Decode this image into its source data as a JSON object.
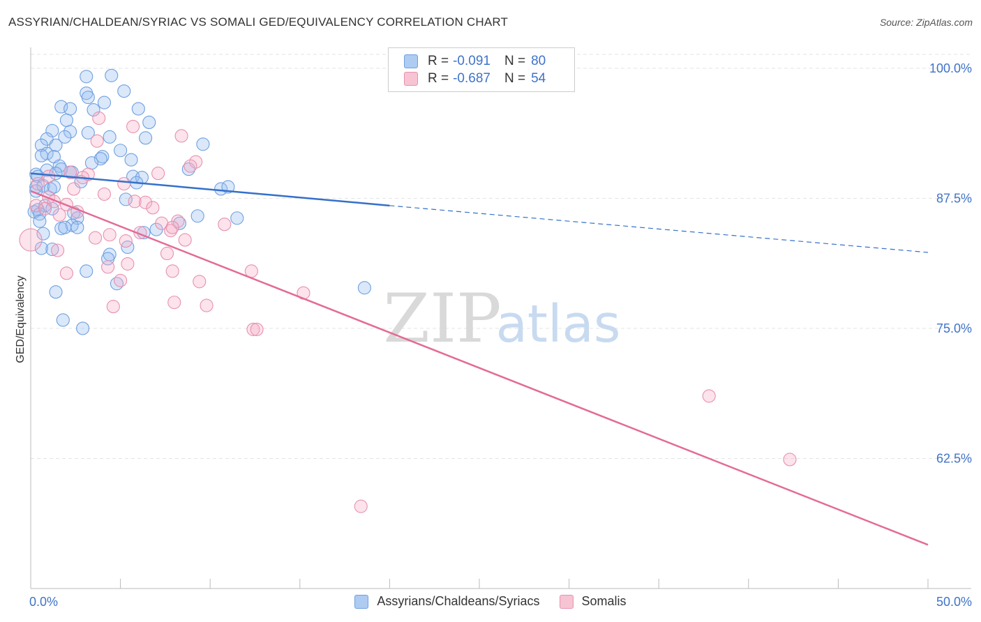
{
  "title": "ASSYRIAN/CHALDEAN/SYRIAC VS SOMALI GED/EQUIVALENCY CORRELATION CHART",
  "source": "Source: ZipAtlas.com",
  "watermark": {
    "zip": "ZIP",
    "atlas": "atlas"
  },
  "legend": {
    "rows": [
      {
        "r_label": "R =",
        "r_value": "-0.091",
        "n_label": "N =",
        "n_value": "80",
        "color": "#aecbf2",
        "border": "#6f9fe0"
      },
      {
        "r_label": "R =",
        "r_value": "-0.687",
        "n_label": "N =",
        "n_value": "54",
        "color": "#f7c4d4",
        "border": "#e890ad"
      }
    ]
  },
  "bottom_legend": [
    "Assyrians/Chaldeans/Syriacs",
    "Somalis"
  ],
  "x_ticks": {
    "left": "0.0%",
    "right": "50.0%"
  },
  "y_tick_labels": [
    "100.0%",
    "87.5%",
    "75.0%",
    "62.5%"
  ],
  "colors": {
    "blue": "#3470c9",
    "pink": "#e36b96",
    "blue_fill": "rgba(150,190,240,0.35)",
    "pink_fill": "rgba(245,175,200,0.35)",
    "tick_text": "#3f73c8"
  },
  "chart_data": {
    "type": "scatter",
    "title": "ASSYRIAN/CHALDEAN/SYRIAC VS SOMALI GED/EQUIVALENCY CORRELATION CHART",
    "xlabel": "",
    "ylabel": "GED/Equivalency",
    "xlim": [
      0,
      50
    ],
    "ylim": [
      50,
      102
    ],
    "y_ticks": [
      62.5,
      75.0,
      87.5,
      100.0
    ],
    "grid": true,
    "legend_position": "top-center",
    "series": [
      {
        "name": "Assyrians/Chaldeans/Syriacs",
        "color": "#3470c9",
        "r": -0.091,
        "n": 80,
        "trend": {
          "x": [
            0,
            20
          ],
          "y": [
            89.9,
            86.8
          ],
          "dashed_extension_to": [
            50,
            82.3
          ]
        },
        "points": [
          [
            4.5,
            99.3
          ],
          [
            3.1,
            99.2
          ],
          [
            3.1,
            97.6
          ],
          [
            5.2,
            97.8
          ],
          [
            3.2,
            97.2
          ],
          [
            4.1,
            96.7
          ],
          [
            1.7,
            96.3
          ],
          [
            2.2,
            96.1
          ],
          [
            6.0,
            96.1
          ],
          [
            3.5,
            96.0
          ],
          [
            2.0,
            95.0
          ],
          [
            6.6,
            94.8
          ],
          [
            1.2,
            94.0
          ],
          [
            2.2,
            93.9
          ],
          [
            3.2,
            93.8
          ],
          [
            4.4,
            93.4
          ],
          [
            1.9,
            93.4
          ],
          [
            6.4,
            93.3
          ],
          [
            0.9,
            93.2
          ],
          [
            1.4,
            92.6
          ],
          [
            9.6,
            92.7
          ],
          [
            0.6,
            92.6
          ],
          [
            5.0,
            92.1
          ],
          [
            0.9,
            91.8
          ],
          [
            0.6,
            91.6
          ],
          [
            1.3,
            91.5
          ],
          [
            4.0,
            91.5
          ],
          [
            3.9,
            91.3
          ],
          [
            5.6,
            91.2
          ],
          [
            3.4,
            90.9
          ],
          [
            1.6,
            90.6
          ],
          [
            0.9,
            90.2
          ],
          [
            1.7,
            90.3
          ],
          [
            2.3,
            90.0
          ],
          [
            8.8,
            90.3
          ],
          [
            2.2,
            90.0
          ],
          [
            1.4,
            89.9
          ],
          [
            0.3,
            89.8
          ],
          [
            0.4,
            89.6
          ],
          [
            5.7,
            89.6
          ],
          [
            6.2,
            89.5
          ],
          [
            5.9,
            89.0
          ],
          [
            2.8,
            89.1
          ],
          [
            0.3,
            88.6
          ],
          [
            0.7,
            88.7
          ],
          [
            1.1,
            88.4
          ],
          [
            0.3,
            88.2
          ],
          [
            10.6,
            88.4
          ],
          [
            1.3,
            88.6
          ],
          [
            11.0,
            88.6
          ],
          [
            5.3,
            87.4
          ],
          [
            0.8,
            86.8
          ],
          [
            0.4,
            86.4
          ],
          [
            1.2,
            86.5
          ],
          [
            0.2,
            86.2
          ],
          [
            0.5,
            86.0
          ],
          [
            2.4,
            86.1
          ],
          [
            9.3,
            85.8
          ],
          [
            2.6,
            85.6
          ],
          [
            11.5,
            85.6
          ],
          [
            0.5,
            85.3
          ],
          [
            2.3,
            84.9
          ],
          [
            2.6,
            84.7
          ],
          [
            6.3,
            84.2
          ],
          [
            0.7,
            84.1
          ],
          [
            1.7,
            84.6
          ],
          [
            1.9,
            84.7
          ],
          [
            5.4,
            82.8
          ],
          [
            0.6,
            82.7
          ],
          [
            1.2,
            82.6
          ],
          [
            4.4,
            82.1
          ],
          [
            4.3,
            81.7
          ],
          [
            3.1,
            80.5
          ],
          [
            4.8,
            79.3
          ],
          [
            1.4,
            78.5
          ],
          [
            18.6,
            78.9
          ],
          [
            1.8,
            75.8
          ],
          [
            2.9,
            75.0
          ],
          [
            7.0,
            84.5
          ],
          [
            8.3,
            85.1
          ]
        ]
      },
      {
        "name": "Somalis",
        "color": "#e36b96",
        "r": -0.687,
        "n": 54,
        "trend": {
          "x": [
            0,
            50
          ],
          "y": [
            88.2,
            54.2
          ]
        },
        "points": [
          [
            3.8,
            95.2
          ],
          [
            5.7,
            94.4
          ],
          [
            8.4,
            93.5
          ],
          [
            3.7,
            93.0
          ],
          [
            9.2,
            91.0
          ],
          [
            8.9,
            90.6
          ],
          [
            7.1,
            89.9
          ],
          [
            3.2,
            89.8
          ],
          [
            2.2,
            90.0
          ],
          [
            1.0,
            89.6
          ],
          [
            2.9,
            89.5
          ],
          [
            5.2,
            88.9
          ],
          [
            2.4,
            88.4
          ],
          [
            4.1,
            87.9
          ],
          [
            1.0,
            87.6
          ],
          [
            1.3,
            87.2
          ],
          [
            5.8,
            87.2
          ],
          [
            6.4,
            87.1
          ],
          [
            0.3,
            86.8
          ],
          [
            0.8,
            86.5
          ],
          [
            2.6,
            86.2
          ],
          [
            1.6,
            85.9
          ],
          [
            7.3,
            85.1
          ],
          [
            8.2,
            85.3
          ],
          [
            10.8,
            85.0
          ],
          [
            7.8,
            84.4
          ],
          [
            7.9,
            84.7
          ],
          [
            6.1,
            84.2
          ],
          [
            4.4,
            84.0
          ],
          [
            3.6,
            83.7
          ],
          [
            5.3,
            83.4
          ],
          [
            8.6,
            83.5
          ],
          [
            0.0,
            83.5
          ],
          [
            1.5,
            82.5
          ],
          [
            7.6,
            82.2
          ],
          [
            5.4,
            81.2
          ],
          [
            4.3,
            80.9
          ],
          [
            7.9,
            80.5
          ],
          [
            12.3,
            80.5
          ],
          [
            2.0,
            80.3
          ],
          [
            5.0,
            79.6
          ],
          [
            9.4,
            79.5
          ],
          [
            15.2,
            78.4
          ],
          [
            8.0,
            77.5
          ],
          [
            9.8,
            77.2
          ],
          [
            4.6,
            77.1
          ],
          [
            12.4,
            74.9
          ],
          [
            12.6,
            74.9
          ],
          [
            37.8,
            68.5
          ],
          [
            42.3,
            62.4
          ],
          [
            18.4,
            57.9
          ],
          [
            0.4,
            88.9
          ],
          [
            6.8,
            86.6
          ],
          [
            2.0,
            86.9
          ]
        ]
      }
    ]
  }
}
